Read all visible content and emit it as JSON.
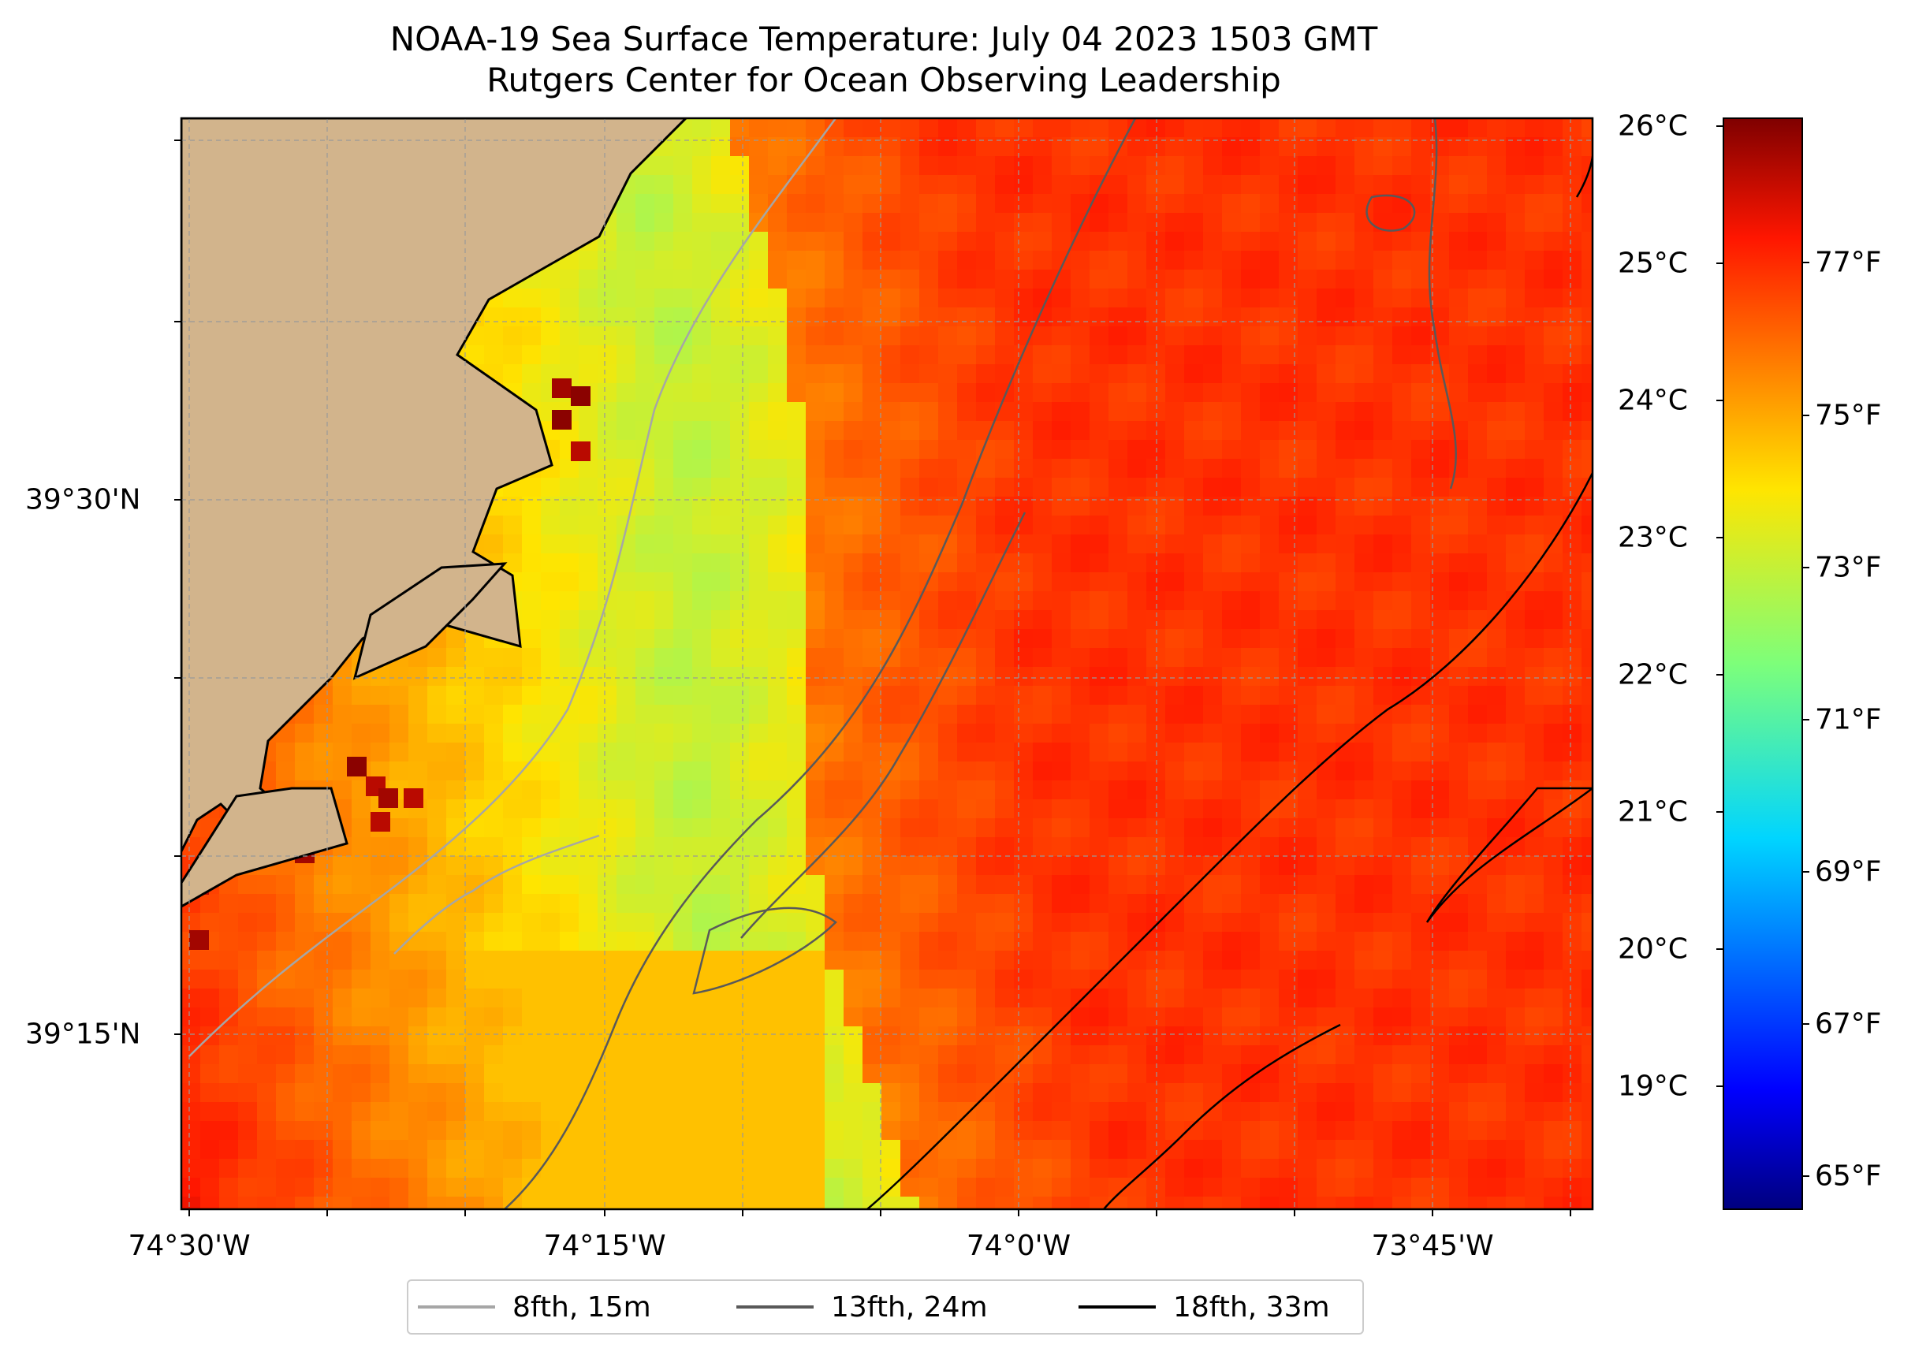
{
  "title": {
    "line1": "NOAA-19 Sea Surface Temperature: July 04 2023 1503 GMT",
    "line2": "Rutgers Center for Ocean Observing Leadership"
  },
  "map": {
    "region": "Southern New Jersey coast / Cape May vicinity",
    "land_color": "#d2b48c",
    "lon_ticks": [
      {
        "value": -74.5,
        "label": "74°30'W"
      },
      {
        "value": -74.25,
        "label": "74°15'W"
      },
      {
        "value": -74.0,
        "label": "74°0'W"
      },
      {
        "value": -73.75,
        "label": "73°45'W"
      }
    ],
    "lat_ticks": [
      {
        "value": 39.5,
        "label": "39°30'N"
      },
      {
        "value": 39.25,
        "label": "39°15'N"
      }
    ],
    "gridlines": true
  },
  "colorbar": {
    "colormap": "jet",
    "celsius_labels": [
      "26°C",
      "25°C",
      "24°C",
      "23°C",
      "22°C",
      "21°C",
      "20°C",
      "19°C"
    ],
    "fahrenheit_labels": [
      "77°F",
      "75°F",
      "73°F",
      "71°F",
      "69°F",
      "67°F",
      "65°F"
    ]
  },
  "legend": {
    "items": [
      {
        "label": "8fth, 15m",
        "color": "#a6a6a6"
      },
      {
        "label": "13fth, 24m",
        "color": "#595959"
      },
      {
        "label": "18fth, 33m",
        "color": "#000000"
      }
    ]
  }
}
